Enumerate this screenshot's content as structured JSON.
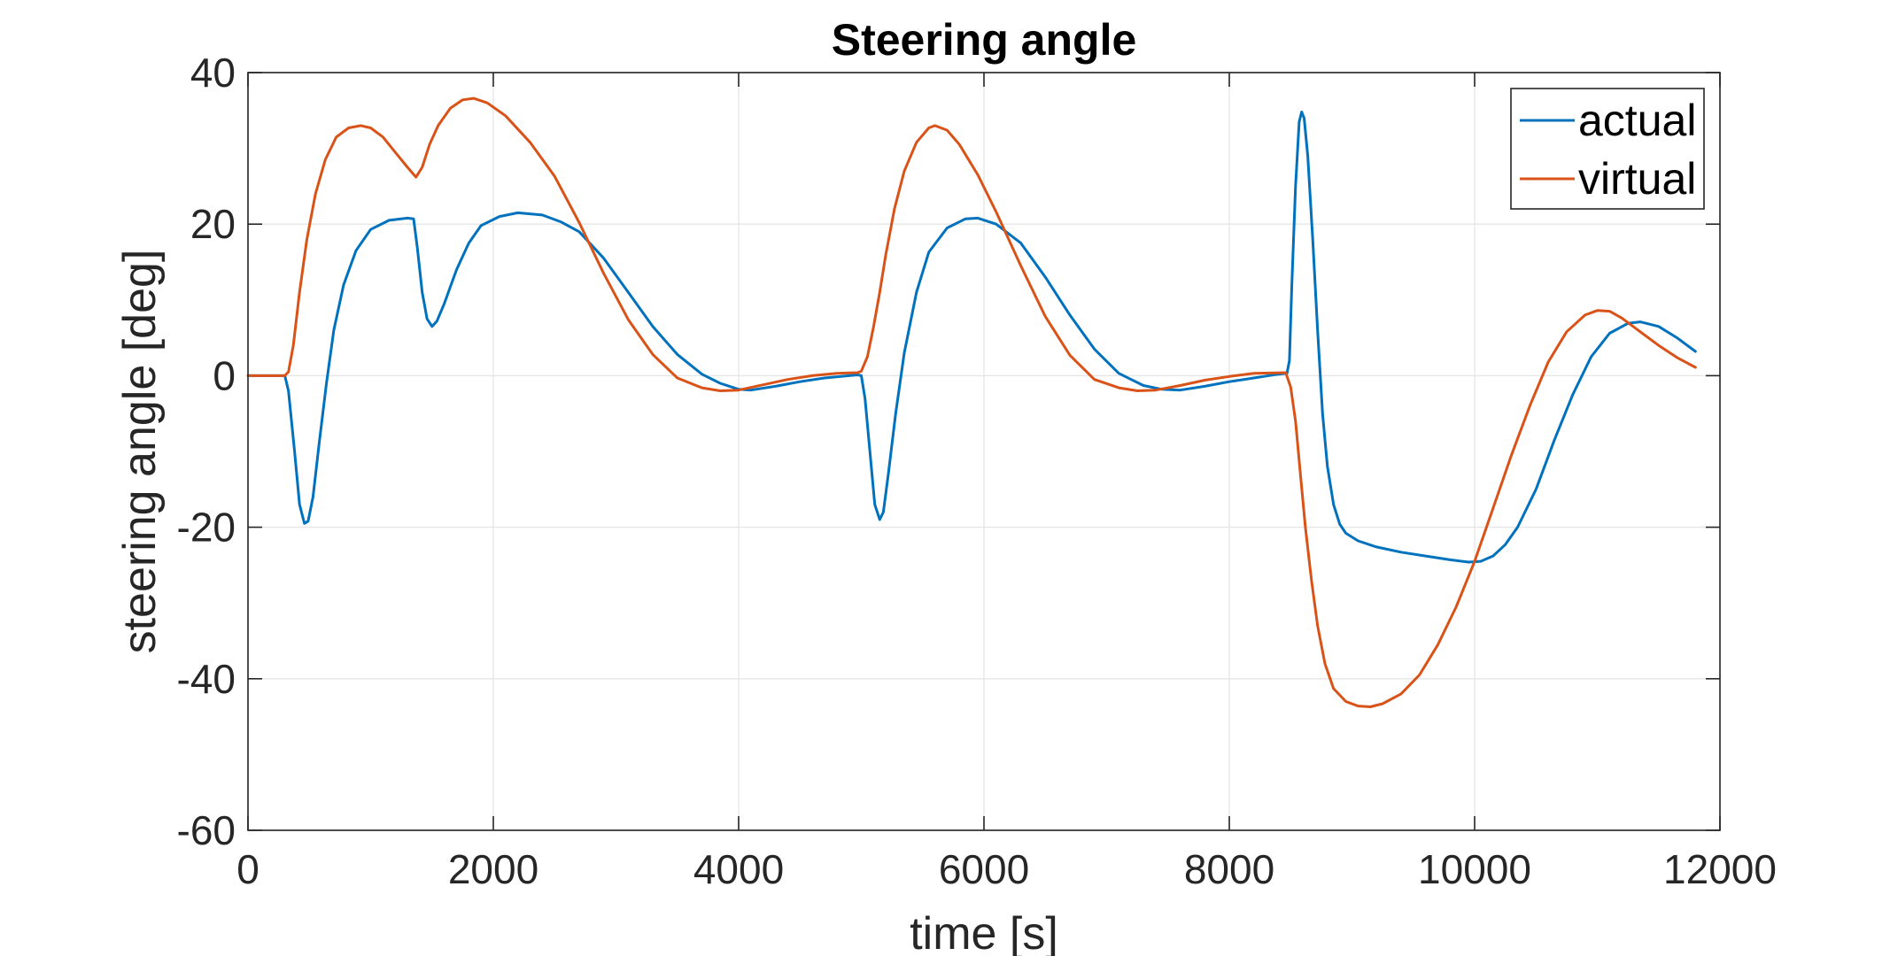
{
  "chart_data": {
    "type": "line",
    "title": "Steering angle",
    "xlabel": "time [s]",
    "ylabel": "steering angle [deg]",
    "xlim": [
      0,
      12000
    ],
    "ylim": [
      -60,
      40
    ],
    "xticks": [
      0,
      2000,
      4000,
      6000,
      8000,
      10000,
      12000
    ],
    "yticks": [
      -60,
      -40,
      -20,
      0,
      20,
      40
    ],
    "xtick_labels": [
      "0",
      "2000",
      "4000",
      "6000",
      "8000",
      "10000",
      "12000"
    ],
    "ytick_labels": [
      "-60",
      "-40",
      "-20",
      "0",
      "20",
      "40"
    ],
    "grid": true,
    "legend_position": "top-right",
    "series": [
      {
        "name": "actual",
        "color": "#0072BD",
        "points": [
          [
            0,
            0
          ],
          [
            300,
            0
          ],
          [
            330,
            -2
          ],
          [
            380,
            -10
          ],
          [
            420,
            -17
          ],
          [
            460,
            -19.5
          ],
          [
            490,
            -19.2
          ],
          [
            530,
            -16
          ],
          [
            580,
            -9
          ],
          [
            640,
            -1
          ],
          [
            700,
            6
          ],
          [
            780,
            12
          ],
          [
            880,
            16.5
          ],
          [
            1000,
            19.3
          ],
          [
            1150,
            20.5
          ],
          [
            1300,
            20.8
          ],
          [
            1350,
            20.7
          ],
          [
            1380,
            17
          ],
          [
            1420,
            11
          ],
          [
            1460,
            7.5
          ],
          [
            1500,
            6.5
          ],
          [
            1540,
            7.2
          ],
          [
            1600,
            9.5
          ],
          [
            1700,
            14
          ],
          [
            1800,
            17.5
          ],
          [
            1900,
            19.8
          ],
          [
            2050,
            21
          ],
          [
            2200,
            21.5
          ],
          [
            2400,
            21.2
          ],
          [
            2550,
            20.3
          ],
          [
            2700,
            19
          ],
          [
            2900,
            15.5
          ],
          [
            3100,
            11
          ],
          [
            3300,
            6.5
          ],
          [
            3500,
            2.8
          ],
          [
            3700,
            0.2
          ],
          [
            3850,
            -1
          ],
          [
            4000,
            -1.8
          ],
          [
            4100,
            -1.9
          ],
          [
            4300,
            -1.4
          ],
          [
            4500,
            -0.8
          ],
          [
            4700,
            -0.3
          ],
          [
            4900,
            0
          ],
          [
            4970,
            0.1
          ],
          [
            5000,
            0
          ],
          [
            5030,
            -3
          ],
          [
            5070,
            -10
          ],
          [
            5110,
            -17
          ],
          [
            5150,
            -19
          ],
          [
            5180,
            -18
          ],
          [
            5220,
            -13
          ],
          [
            5280,
            -5
          ],
          [
            5350,
            3
          ],
          [
            5450,
            11
          ],
          [
            5550,
            16.3
          ],
          [
            5700,
            19.5
          ],
          [
            5850,
            20.7
          ],
          [
            5950,
            20.8
          ],
          [
            6100,
            20
          ],
          [
            6300,
            17.5
          ],
          [
            6500,
            13
          ],
          [
            6700,
            8
          ],
          [
            6900,
            3.5
          ],
          [
            7100,
            0.3
          ],
          [
            7300,
            -1.3
          ],
          [
            7450,
            -1.8
          ],
          [
            7600,
            -1.9
          ],
          [
            7800,
            -1.4
          ],
          [
            8000,
            -0.8
          ],
          [
            8200,
            -0.3
          ],
          [
            8400,
            0.2
          ],
          [
            8470,
            0.3
          ],
          [
            8490,
            2
          ],
          [
            8510,
            12
          ],
          [
            8540,
            25
          ],
          [
            8570,
            33.5
          ],
          [
            8590,
            34.8
          ],
          [
            8610,
            34
          ],
          [
            8640,
            29
          ],
          [
            8680,
            18
          ],
          [
            8720,
            6
          ],
          [
            8760,
            -5
          ],
          [
            8800,
            -12
          ],
          [
            8850,
            -17
          ],
          [
            8900,
            -19.6
          ],
          [
            8950,
            -20.8
          ],
          [
            9050,
            -21.8
          ],
          [
            9200,
            -22.6
          ],
          [
            9400,
            -23.3
          ],
          [
            9600,
            -23.8
          ],
          [
            9800,
            -24.3
          ],
          [
            9950,
            -24.6
          ],
          [
            10050,
            -24.5
          ],
          [
            10150,
            -23.8
          ],
          [
            10250,
            -22.3
          ],
          [
            10350,
            -20
          ],
          [
            10500,
            -15
          ],
          [
            10650,
            -8.5
          ],
          [
            10800,
            -2.5
          ],
          [
            10950,
            2.5
          ],
          [
            11100,
            5.6
          ],
          [
            11250,
            6.9
          ],
          [
            11350,
            7.1
          ],
          [
            11500,
            6.5
          ],
          [
            11650,
            5
          ],
          [
            11800,
            3.2
          ]
        ]
      },
      {
        "name": "virtual",
        "color": "#D95319",
        "points": [
          [
            0,
            0
          ],
          [
            300,
            0
          ],
          [
            330,
            0.5
          ],
          [
            370,
            4
          ],
          [
            420,
            11
          ],
          [
            480,
            18
          ],
          [
            550,
            24
          ],
          [
            630,
            28.5
          ],
          [
            720,
            31.5
          ],
          [
            820,
            32.7
          ],
          [
            920,
            33
          ],
          [
            1000,
            32.7
          ],
          [
            1100,
            31.5
          ],
          [
            1200,
            29.5
          ],
          [
            1300,
            27.5
          ],
          [
            1370,
            26.2
          ],
          [
            1420,
            27.5
          ],
          [
            1480,
            30.5
          ],
          [
            1550,
            33
          ],
          [
            1650,
            35.3
          ],
          [
            1750,
            36.4
          ],
          [
            1840,
            36.6
          ],
          [
            1950,
            36
          ],
          [
            2100,
            34.3
          ],
          [
            2300,
            30.8
          ],
          [
            2500,
            26.3
          ],
          [
            2700,
            20.2
          ],
          [
            2900,
            13.5
          ],
          [
            3100,
            7.4
          ],
          [
            3300,
            2.8
          ],
          [
            3500,
            -0.3
          ],
          [
            3700,
            -1.6
          ],
          [
            3850,
            -2
          ],
          [
            4000,
            -1.9
          ],
          [
            4200,
            -1.2
          ],
          [
            4400,
            -0.5
          ],
          [
            4600,
            0
          ],
          [
            4800,
            0.3
          ],
          [
            4970,
            0.4
          ],
          [
            5000,
            0.6
          ],
          [
            5050,
            2.5
          ],
          [
            5100,
            6.5
          ],
          [
            5150,
            11
          ],
          [
            5200,
            16
          ],
          [
            5270,
            22
          ],
          [
            5350,
            27
          ],
          [
            5450,
            30.8
          ],
          [
            5550,
            32.7
          ],
          [
            5600,
            33
          ],
          [
            5700,
            32.4
          ],
          [
            5800,
            30.5
          ],
          [
            5950,
            26.5
          ],
          [
            6100,
            21.6
          ],
          [
            6300,
            14.5
          ],
          [
            6500,
            7.8
          ],
          [
            6700,
            2.7
          ],
          [
            6900,
            -0.5
          ],
          [
            7100,
            -1.6
          ],
          [
            7250,
            -2
          ],
          [
            7400,
            -1.9
          ],
          [
            7600,
            -1.3
          ],
          [
            7800,
            -0.6
          ],
          [
            8000,
            -0.1
          ],
          [
            8200,
            0.3
          ],
          [
            8460,
            0.4
          ],
          [
            8500,
            -1.5
          ],
          [
            8540,
            -6
          ],
          [
            8580,
            -13
          ],
          [
            8620,
            -20
          ],
          [
            8670,
            -27
          ],
          [
            8720,
            -33
          ],
          [
            8780,
            -38
          ],
          [
            8850,
            -41.3
          ],
          [
            8950,
            -43
          ],
          [
            9050,
            -43.6
          ],
          [
            9150,
            -43.7
          ],
          [
            9250,
            -43.3
          ],
          [
            9400,
            -42
          ],
          [
            9550,
            -39.5
          ],
          [
            9700,
            -35.5
          ],
          [
            9850,
            -30.5
          ],
          [
            10000,
            -24.5
          ],
          [
            10150,
            -17.5
          ],
          [
            10300,
            -10.5
          ],
          [
            10450,
            -4
          ],
          [
            10600,
            1.8
          ],
          [
            10750,
            5.8
          ],
          [
            10900,
            8
          ],
          [
            11000,
            8.6
          ],
          [
            11100,
            8.5
          ],
          [
            11200,
            7.6
          ],
          [
            11350,
            5.8
          ],
          [
            11500,
            4
          ],
          [
            11650,
            2.4
          ],
          [
            11800,
            1.1
          ]
        ]
      }
    ]
  }
}
